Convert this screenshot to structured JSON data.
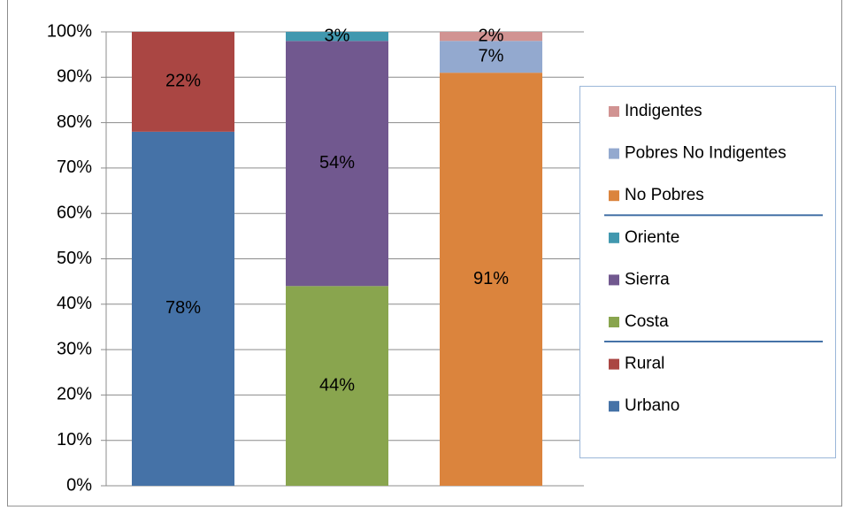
{
  "chart_data": {
    "type": "stacked_bar",
    "categories": [
      null,
      null,
      null
    ],
    "series": [
      {
        "name": "Urbano",
        "color": "#4572a7",
        "values": [
          78,
          null,
          null
        ],
        "value_labels": [
          "78%",
          null,
          null
        ]
      },
      {
        "name": "Rural",
        "color": "#aa4643",
        "values": [
          22,
          null,
          null
        ],
        "value_labels": [
          "22%",
          null,
          null
        ]
      },
      {
        "name": "Costa",
        "color": "#89a54e",
        "values": [
          null,
          44,
          null
        ],
        "value_labels": [
          null,
          "44%",
          null
        ]
      },
      {
        "name": "Sierra",
        "color": "#71588f",
        "values": [
          null,
          54,
          null
        ],
        "value_labels": [
          null,
          "54%",
          null
        ]
      },
      {
        "name": "Oriente",
        "color": "#4198af",
        "values": [
          null,
          3,
          null
        ],
        "value_labels": [
          null,
          "3%",
          null
        ]
      },
      {
        "name": "No Pobres",
        "color": "#db843d",
        "values": [
          null,
          null,
          91
        ],
        "value_labels": [
          null,
          null,
          "91%"
        ]
      },
      {
        "name": "Pobres No Indigentes",
        "color": "#93a9cf",
        "values": [
          null,
          null,
          7
        ],
        "value_labels": [
          null,
          null,
          "7%"
        ]
      },
      {
        "name": "Indigentes",
        "color": "#d19392",
        "values": [
          null,
          null,
          2
        ],
        "value_labels": [
          null,
          null,
          "2%"
        ]
      }
    ],
    "ylim": [
      0,
      100
    ],
    "yticks": [
      {
        "value": 0,
        "label": "0%"
      },
      {
        "value": 10,
        "label": "10%"
      },
      {
        "value": 20,
        "label": "20%"
      },
      {
        "value": 30,
        "label": "30%"
      },
      {
        "value": 40,
        "label": "40%"
      },
      {
        "value": 50,
        "label": "50%"
      },
      {
        "value": 60,
        "label": "60%"
      },
      {
        "value": 70,
        "label": "70%"
      },
      {
        "value": 80,
        "label": "80%"
      },
      {
        "value": 90,
        "label": "90%"
      },
      {
        "value": 100,
        "label": "100%"
      }
    ],
    "grid": true,
    "legend": "right"
  }
}
